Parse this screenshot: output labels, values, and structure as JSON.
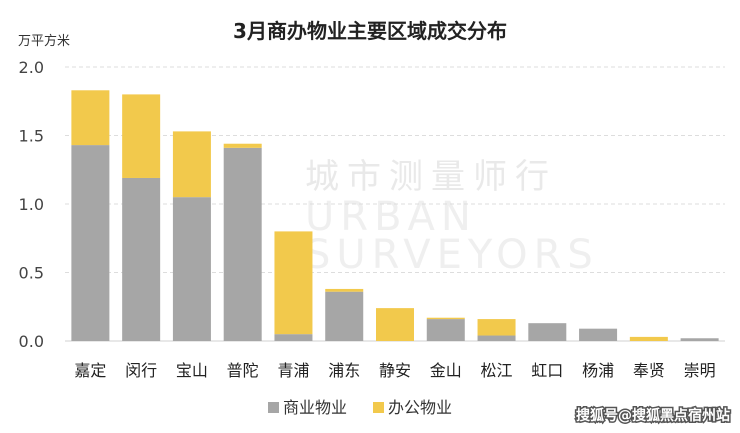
{
  "chart_data": {
    "type": "bar",
    "stacked": true,
    "title": "3月商办物业主要区域成交分布",
    "unit_label": "万平方米",
    "ylim": [
      0,
      2.0
    ],
    "yticks": [
      "0.0",
      "0.5",
      "1.0",
      "1.5",
      "2.0"
    ],
    "ytick_values": [
      0,
      0.5,
      1.0,
      1.5,
      2.0
    ],
    "grid": "horizontal dashed",
    "legend_position": "bottom",
    "categories": [
      "嘉定",
      "闵行",
      "宝山",
      "普陀",
      "青浦",
      "浦东",
      "静安",
      "金山",
      "松江",
      "虹口",
      "杨浦",
      "奉贤",
      "崇明"
    ],
    "series": [
      {
        "name": "商业物业",
        "color": "#a6a6a6",
        "values": [
          1.43,
          1.19,
          1.05,
          1.41,
          0.05,
          0.36,
          0.0,
          0.16,
          0.04,
          0.13,
          0.09,
          0.0,
          0.02
        ]
      },
      {
        "name": "办公物业",
        "color": "#f2c94c",
        "values": [
          0.4,
          0.61,
          0.48,
          0.03,
          0.75,
          0.02,
          0.24,
          0.01,
          0.12,
          0.0,
          0.0,
          0.03,
          0.0
        ]
      }
    ]
  },
  "watermark": {
    "cn": "城市测量师行",
    "en1": "URBAN",
    "en2": "SURVEYORS"
  },
  "credit": "搜狐号@搜狐黑点宿州站"
}
